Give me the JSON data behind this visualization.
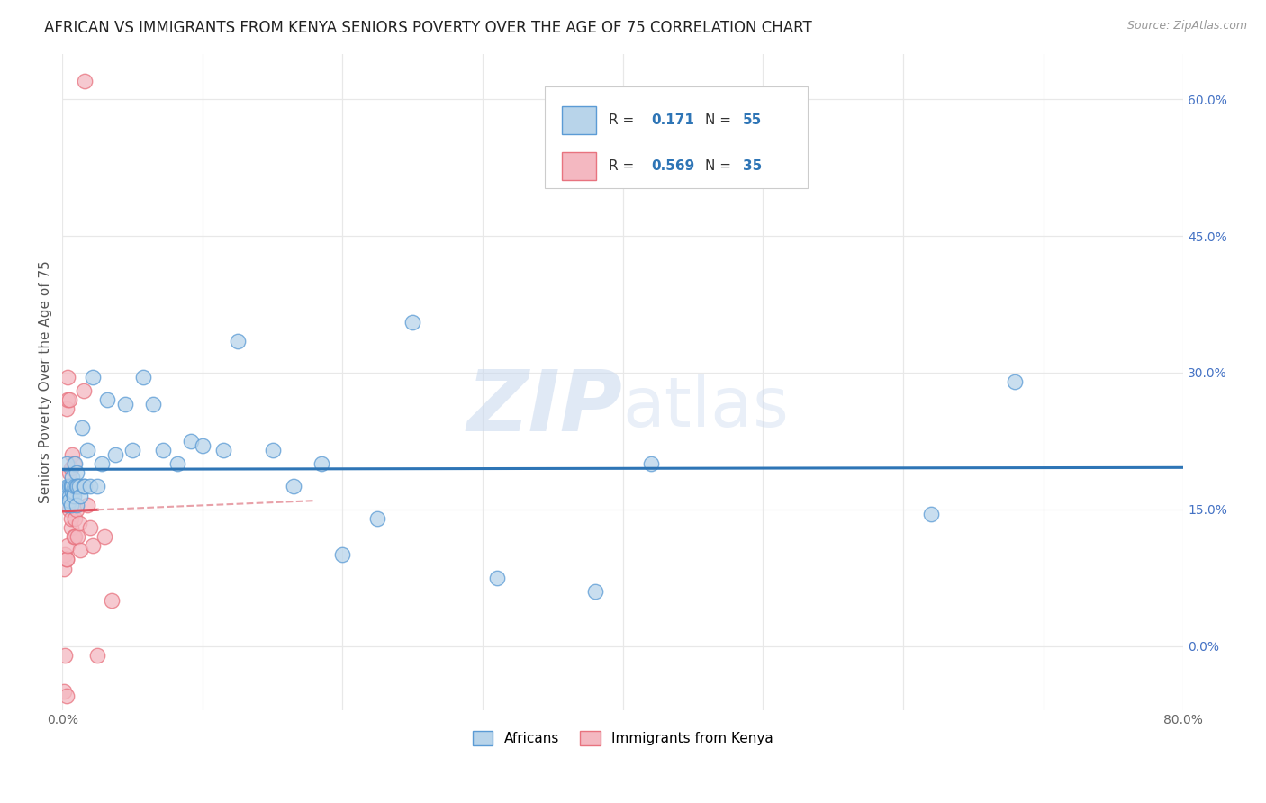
{
  "title": "AFRICAN VS IMMIGRANTS FROM KENYA SENIORS POVERTY OVER THE AGE OF 75 CORRELATION CHART",
  "source": "Source: ZipAtlas.com",
  "ylabel": "Seniors Poverty Over the Age of 75",
  "watermark_zip": "ZIP",
  "watermark_atlas": "atlas",
  "xlim": [
    0.0,
    0.8
  ],
  "ylim": [
    -0.07,
    0.65
  ],
  "yticks_right": [
    0.0,
    0.15,
    0.3,
    0.45,
    0.6
  ],
  "ytick_labels_right": [
    "0.0%",
    "15.0%",
    "30.0%",
    "45.0%",
    "60.0%"
  ],
  "xtick_positions": [
    0.0,
    0.1,
    0.2,
    0.3,
    0.4,
    0.5,
    0.6,
    0.7,
    0.8
  ],
  "xtick_labels": [
    "0.0%",
    "",
    "",
    "",
    "",
    "",
    "",
    "",
    "80.0%"
  ],
  "africans_R": 0.171,
  "africans_N": 55,
  "kenya_R": 0.569,
  "kenya_N": 35,
  "africans_color_face": "#b8d4ea",
  "africans_color_edge": "#5b9bd5",
  "kenya_color_face": "#f4b8c1",
  "kenya_color_edge": "#e8737f",
  "blue_line_color": "#2e75b6",
  "kenya_line_color": "#e05060",
  "kenya_dash_color": "#e8a0a8",
  "background_color": "#ffffff",
  "grid_color": "#e8e8e8",
  "title_fontsize": 12,
  "source_fontsize": 9,
  "tick_fontsize": 10,
  "ylabel_fontsize": 11,
  "africans_x": [
    0.002,
    0.003,
    0.003,
    0.004,
    0.004,
    0.005,
    0.005,
    0.005,
    0.006,
    0.006,
    0.006,
    0.007,
    0.007,
    0.007,
    0.008,
    0.008,
    0.009,
    0.009,
    0.01,
    0.01,
    0.01,
    0.011,
    0.012,
    0.013,
    0.014,
    0.015,
    0.016,
    0.018,
    0.02,
    0.022,
    0.025,
    0.028,
    0.032,
    0.038,
    0.045,
    0.05,
    0.058,
    0.065,
    0.072,
    0.082,
    0.092,
    0.1,
    0.115,
    0.125,
    0.15,
    0.165,
    0.185,
    0.2,
    0.225,
    0.25,
    0.31,
    0.38,
    0.42,
    0.62,
    0.68
  ],
  "africans_y": [
    0.165,
    0.17,
    0.2,
    0.175,
    0.155,
    0.175,
    0.165,
    0.16,
    0.175,
    0.155,
    0.175,
    0.17,
    0.175,
    0.185,
    0.17,
    0.165,
    0.2,
    0.175,
    0.19,
    0.175,
    0.155,
    0.175,
    0.175,
    0.165,
    0.24,
    0.175,
    0.175,
    0.215,
    0.175,
    0.295,
    0.175,
    0.2,
    0.27,
    0.21,
    0.265,
    0.215,
    0.295,
    0.265,
    0.215,
    0.2,
    0.225,
    0.22,
    0.215,
    0.335,
    0.215,
    0.175,
    0.2,
    0.1,
    0.14,
    0.355,
    0.075,
    0.06,
    0.2,
    0.145,
    0.29
  ],
  "kenya_x": [
    0.001,
    0.001,
    0.002,
    0.002,
    0.003,
    0.003,
    0.003,
    0.003,
    0.004,
    0.004,
    0.004,
    0.005,
    0.005,
    0.005,
    0.006,
    0.006,
    0.006,
    0.007,
    0.007,
    0.008,
    0.008,
    0.009,
    0.009,
    0.01,
    0.011,
    0.012,
    0.013,
    0.015,
    0.016,
    0.018,
    0.02,
    0.022,
    0.025,
    0.03,
    0.035
  ],
  "kenya_y": [
    -0.05,
    0.085,
    -0.01,
    0.1,
    -0.055,
    0.095,
    0.095,
    0.26,
    0.11,
    0.27,
    0.295,
    0.15,
    0.19,
    0.27,
    0.13,
    0.14,
    0.195,
    0.21,
    0.175,
    0.12,
    0.2,
    0.12,
    0.14,
    0.15,
    0.12,
    0.135,
    0.105,
    0.28,
    0.62,
    0.155,
    0.13,
    0.11,
    -0.01,
    0.12,
    0.05
  ]
}
